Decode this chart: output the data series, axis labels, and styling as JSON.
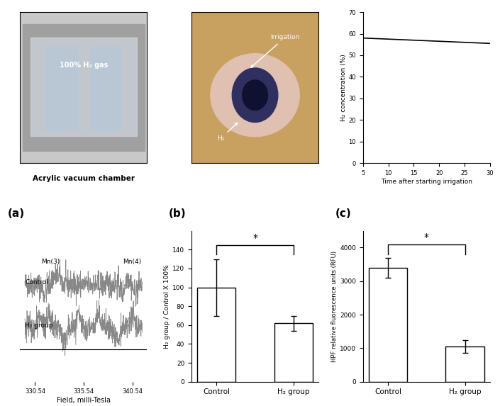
{
  "panel_labels": [
    "(a)",
    "(b)",
    "(c)",
    "(a)",
    "(b)",
    "(c)"
  ],
  "top_row": {
    "panel_a_caption": "Acrylic vacuum chamber",
    "panel_b_annotation1": "Irrigation",
    "panel_b_annotation2": "H₂",
    "panel_b_text": "100% H₂ gas",
    "panel_c": {
      "title": "(c)",
      "xlabel": "Time after starting irrigation",
      "ylabel": "H₂ concentration (%)",
      "xdata": [
        5,
        10,
        15,
        20,
        25,
        30
      ],
      "ydata": [
        58,
        57.5,
        57,
        56.5,
        56,
        55.5
      ],
      "ylim": [
        0,
        70
      ],
      "xlim": [
        5,
        30
      ],
      "yticks": [
        0,
        10,
        20,
        30,
        40,
        50,
        60,
        70
      ],
      "xticks": [
        5,
        10,
        15,
        20,
        25,
        30
      ]
    }
  },
  "bottom_row": {
    "panel_a": {
      "title": "(a)",
      "xlabel": "Field, milli-Tesla",
      "label1": "Mn(3)",
      "label2": "Mn(4)",
      "row1_label": "Control",
      "row2_label": "H₂ group",
      "xticks": [
        330.54,
        335.54,
        340.54
      ],
      "xlim": [
        329,
        342
      ]
    },
    "panel_b": {
      "title": "(b)",
      "ylabel": "H₂ group / Control X 100%",
      "categories": [
        "Control",
        "H₂ group"
      ],
      "values": [
        100,
        62
      ],
      "errors": [
        30,
        8
      ],
      "ylim": [
        0,
        160
      ],
      "yticks": [
        0,
        20,
        40,
        60,
        80,
        100,
        120,
        140
      ],
      "significance": "*"
    },
    "panel_c": {
      "title": "(c)",
      "ylabel": "HPF relative fluorescence units (RFU)",
      "categories": [
        "Control",
        "H₂ group"
      ],
      "values": [
        3400,
        1050
      ],
      "errors": [
        300,
        200
      ],
      "ylim": [
        0,
        4500
      ],
      "yticks": [
        0,
        1000,
        2000,
        3000,
        4000
      ],
      "significance": "*"
    }
  },
  "bg_color": "#ffffff",
  "bar_color": "#ffffff",
  "bar_edgecolor": "#000000",
  "line_color": "#000000",
  "esr_color": "#888888"
}
